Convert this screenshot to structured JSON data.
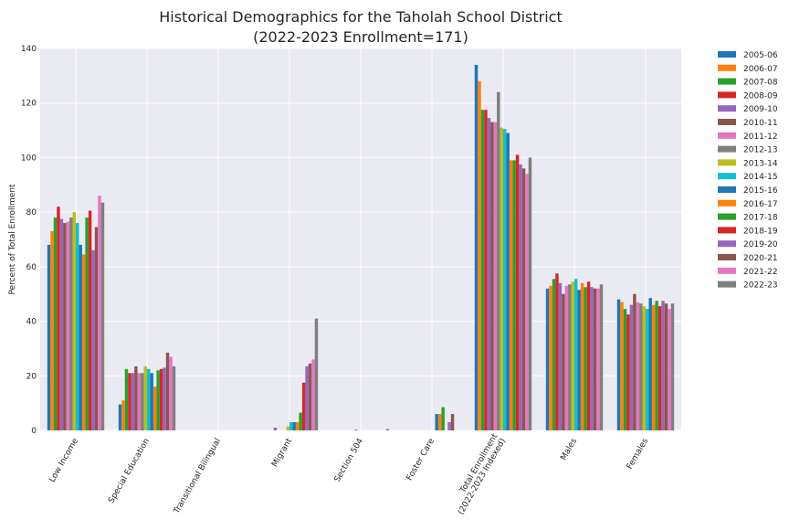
{
  "chart_data": {
    "type": "bar",
    "title_lines": [
      "Historical Demographics for the Taholah School District",
      "(2022-2023 Enrollment=171)"
    ],
    "xlabel": "",
    "ylabel": "Percent of Total Enrollment",
    "ylim": [
      0,
      140
    ],
    "yticks": [
      0,
      20,
      40,
      60,
      80,
      100,
      120,
      140
    ],
    "grid": true,
    "legend_placement": "outside-top-right",
    "category_labels": [
      [
        "Low Income"
      ],
      [
        "Special Education"
      ],
      [
        "Transitional Bilingual"
      ],
      [
        "Migrant"
      ],
      [
        "Section 504"
      ],
      [
        "Foster Care"
      ],
      [
        "Total Enrollment",
        "(2022-2023 Indexed)"
      ],
      [
        "Males"
      ],
      [
        "Females"
      ]
    ],
    "series": [
      {
        "name": "2005-06",
        "color": "#1f77b4",
        "values": [
          68,
          9.5,
          0,
          0,
          0,
          0,
          134,
          52,
          48
        ]
      },
      {
        "name": "2006-07",
        "color": "#ff7f0e",
        "values": [
          73,
          11,
          0,
          0,
          0,
          0,
          128,
          53,
          47
        ]
      },
      {
        "name": "2007-08",
        "color": "#2ca02c",
        "values": [
          78,
          22.5,
          0,
          0,
          0,
          0,
          117.5,
          55.5,
          44.5
        ]
      },
      {
        "name": "2008-09",
        "color": "#d62728",
        "values": [
          82,
          21,
          0,
          0,
          0,
          0,
          117.5,
          57.5,
          42.5
        ]
      },
      {
        "name": "2009-10",
        "color": "#9467bd",
        "values": [
          77.5,
          21,
          0,
          1,
          0,
          0,
          114.5,
          54,
          46
        ]
      },
      {
        "name": "2010-11",
        "color": "#8c564b",
        "values": [
          76,
          23.5,
          0,
          0,
          0,
          0,
          113,
          50,
          50
        ]
      },
      {
        "name": "2011-12",
        "color": "#e377c2",
        "values": [
          76.5,
          21,
          0,
          0,
          0,
          0,
          113,
          53,
          47
        ]
      },
      {
        "name": "2012-13",
        "color": "#7f7f7f",
        "values": [
          78,
          21,
          0,
          0,
          0.3,
          0,
          124,
          53.5,
          46.5
        ]
      },
      {
        "name": "2013-14",
        "color": "#bcbd22",
        "values": [
          80,
          23.5,
          0,
          1.5,
          0,
          0,
          111,
          54.5,
          45.5
        ]
      },
      {
        "name": "2014-15",
        "color": "#17becf",
        "values": [
          76,
          22.5,
          0,
          3,
          0,
          0,
          110.5,
          55.5,
          44.5
        ]
      },
      {
        "name": "2015-16",
        "color": "#1f77b4",
        "values": [
          68,
          21,
          0,
          3,
          0,
          6,
          109,
          51.5,
          48.5
        ]
      },
      {
        "name": "2016-17",
        "color": "#ff7f0e",
        "values": [
          64.5,
          16,
          0,
          3,
          0,
          6,
          99,
          54,
          46
        ]
      },
      {
        "name": "2017-18",
        "color": "#2ca02c",
        "values": [
          78,
          22,
          0,
          6.5,
          0,
          8.5,
          99,
          52.5,
          47.5
        ]
      },
      {
        "name": "2018-19",
        "color": "#d62728",
        "values": [
          80.5,
          22.5,
          0,
          17.5,
          0,
          0,
          101,
          54.5,
          45.5
        ]
      },
      {
        "name": "2019-20",
        "color": "#9467bd",
        "values": [
          66,
          23,
          0,
          23.5,
          0,
          3,
          97.5,
          52.5,
          47.5
        ]
      },
      {
        "name": "2020-21",
        "color": "#8c564b",
        "values": [
          74.5,
          28.5,
          0,
          24.5,
          0,
          6,
          96,
          52,
          46.5
        ]
      },
      {
        "name": "2021-22",
        "color": "#e377c2",
        "values": [
          86,
          27,
          0,
          26,
          0,
          0,
          94,
          52,
          44.5
        ]
      },
      {
        "name": "2022-23",
        "color": "#7f7f7f",
        "values": [
          83.5,
          23.5,
          0,
          41,
          0.5,
          0,
          100,
          53.5,
          46.5
        ]
      }
    ]
  },
  "colors": {
    "plot_background": "#eaeaf2",
    "grid": "#ffffff",
    "text": "#262626"
  }
}
